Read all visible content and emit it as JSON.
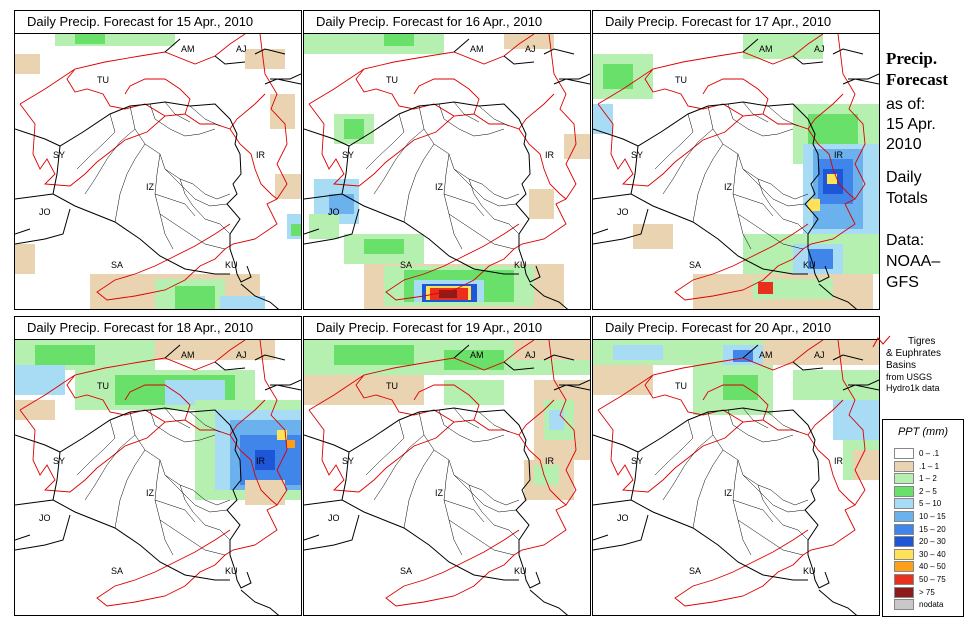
{
  "panels": [
    {
      "title": "Daily Precip. Forecast for  15 Apr., 2010"
    },
    {
      "title": "Daily Precip. Forecast for  16 Apr., 2010"
    },
    {
      "title": "Daily Precip. Forecast for  17 Apr., 2010"
    },
    {
      "title": "Daily Precip. Forecast for  18 Apr., 2010"
    },
    {
      "title": "Daily Precip. Forecast for  19 Apr., 2010"
    },
    {
      "title": "Daily Precip. Forecast for  20 Apr., 2010"
    }
  ],
  "map_labels": {
    "am": "AM",
    "aj": "AJ",
    "tu": "TU",
    "sy": "SY",
    "ir": "IR",
    "iz": "IZ",
    "jo": "JO",
    "sa": "SA",
    "ku": "KU"
  },
  "side": {
    "line1": "Precip.",
    "line2": "Forecast",
    "line3": "as of:",
    "line4": "15 Apr.",
    "line5": "2010",
    "line6": "Daily",
    "line7": "Totals",
    "line8": "Data:",
    "line9": "NOAA–",
    "line10": "GFS"
  },
  "basin_legend": {
    "line1": "Tigres",
    "line2": "& Euphrates",
    "line3": "Basins",
    "line4": "from USGS",
    "line5": "Hydro1k data"
  },
  "ppt_legend": {
    "title": "PPT (mm)",
    "classes": [
      {
        "label": "0 – .1",
        "color": "#ffffff"
      },
      {
        "label": ".1 – 1",
        "color": "#e9d3b0"
      },
      {
        "label": "1 – 2",
        "color": "#b6f0b0"
      },
      {
        "label": "2 – 5",
        "color": "#68e06a"
      },
      {
        "label": "5 – 10",
        "color": "#a8dcf5"
      },
      {
        "label": "10 – 15",
        "color": "#6bb1ee"
      },
      {
        "label": "15 – 20",
        "color": "#3f85ea"
      },
      {
        "label": "20 – 30",
        "color": "#1d56d6"
      },
      {
        "label": "30 – 40",
        "color": "#ffe25a"
      },
      {
        "label": "40 – 50",
        "color": "#ff9e1a"
      },
      {
        "label": "50 – 75",
        "color": "#e8301c"
      },
      {
        "label": "> 75",
        "color": "#8e1b1b"
      },
      {
        "label": "nodata",
        "color": "#c8c8c8"
      }
    ]
  },
  "colors": {
    "basin": "#dd0000",
    "border": "#000000"
  }
}
